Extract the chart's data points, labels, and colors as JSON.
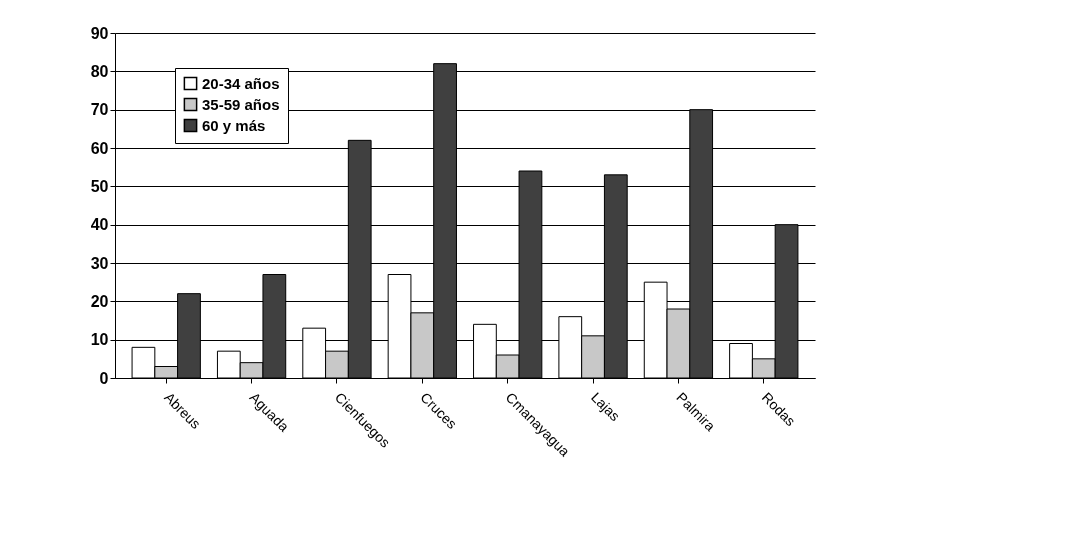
{
  "chart_data": {
    "type": "bar",
    "categories": [
      "Abreus",
      "Aguada",
      "Cienfuegos",
      "Cruces",
      "Cmanayagua",
      "Lajas",
      "Palmira",
      "Rodas"
    ],
    "series": [
      {
        "name": "20-34 años",
        "color": "#ffffff",
        "values": [
          8,
          7,
          13,
          27,
          14,
          16,
          25,
          9
        ]
      },
      {
        "name": "35-59 años",
        "color": "#c8c8c8",
        "values": [
          3,
          4,
          7,
          17,
          6,
          11,
          18,
          5
        ]
      },
      {
        "name": "60 y más",
        "color": "#404040",
        "values": [
          22,
          27,
          62,
          82,
          54,
          53,
          70,
          40
        ]
      }
    ],
    "ylim": [
      0,
      90
    ],
    "yticks": [
      0,
      10,
      20,
      30,
      40,
      50,
      60,
      70,
      80,
      90
    ],
    "grid": "y",
    "legend": "top left"
  }
}
